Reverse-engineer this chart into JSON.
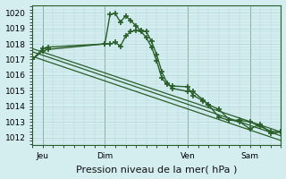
{
  "background_color": "#d4eef0",
  "grid_color": "#b0d4d8",
  "line_color": "#2a5e2a",
  "xlabel": "Pression niveau de la mer( hPa )",
  "xlabel_fontsize": 8,
  "tick_fontsize": 6.5,
  "ylim": [
    1011.5,
    1020.5
  ],
  "yticks": [
    1012,
    1013,
    1014,
    1015,
    1016,
    1017,
    1018,
    1019,
    1020
  ],
  "day_labels": [
    "Jeu",
    "Dim",
    "Ven",
    "Sam"
  ],
  "day_positions": [
    2,
    14,
    30,
    42
  ],
  "xlim": [
    0,
    48
  ],
  "series": [
    {
      "x": [
        0,
        2,
        3,
        14,
        15,
        16,
        17,
        18,
        19,
        20,
        21,
        22,
        23,
        24,
        25,
        26,
        27,
        30,
        31,
        33,
        34,
        36,
        38,
        40,
        42,
        44,
        46,
        48
      ],
      "y": [
        1017.0,
        1017.7,
        1017.8,
        1018.0,
        1019.9,
        1019.95,
        1019.4,
        1019.8,
        1019.5,
        1019.15,
        1018.85,
        1018.8,
        1018.15,
        1017.3,
        1016.2,
        1015.5,
        1015.15,
        1014.95,
        1014.95,
        1014.4,
        1014.1,
        1013.8,
        1013.15,
        1013.0,
        1012.55,
        1012.85,
        1012.25,
        1012.35
      ],
      "marker": "+",
      "markersize": 4,
      "linewidth": 1.0,
      "linestyle": "-"
    },
    {
      "x": [
        0,
        2,
        3,
        14,
        15,
        16,
        17,
        18,
        19,
        20,
        21,
        22,
        23,
        24,
        25,
        26,
        27,
        30,
        31,
        33,
        34,
        36,
        38,
        40,
        42,
        44,
        46,
        48
      ],
      "y": [
        1017.0,
        1017.55,
        1017.65,
        1018.0,
        1018.0,
        1018.1,
        1017.85,
        1018.5,
        1018.8,
        1018.85,
        1018.8,
        1018.4,
        1017.8,
        1016.9,
        1015.8,
        1015.4,
        1015.3,
        1015.25,
        1014.7,
        1014.35,
        1014.1,
        1013.3,
        1013.1,
        1013.1,
        1013.0,
        1012.7,
        1012.4,
        1012.35
      ],
      "marker": "+",
      "markersize": 4,
      "linewidth": 1.0,
      "linestyle": "-"
    },
    {
      "x": [
        0,
        48
      ],
      "y": [
        1017.7,
        1012.35
      ],
      "marker": null,
      "markersize": 0,
      "linewidth": 0.9,
      "linestyle": "-"
    },
    {
      "x": [
        0,
        48
      ],
      "y": [
        1017.5,
        1012.1
      ],
      "marker": null,
      "markersize": 0,
      "linewidth": 0.9,
      "linestyle": "-"
    },
    {
      "x": [
        0,
        48
      ],
      "y": [
        1017.2,
        1011.8
      ],
      "marker": null,
      "markersize": 0,
      "linewidth": 0.9,
      "linestyle": "-"
    }
  ]
}
